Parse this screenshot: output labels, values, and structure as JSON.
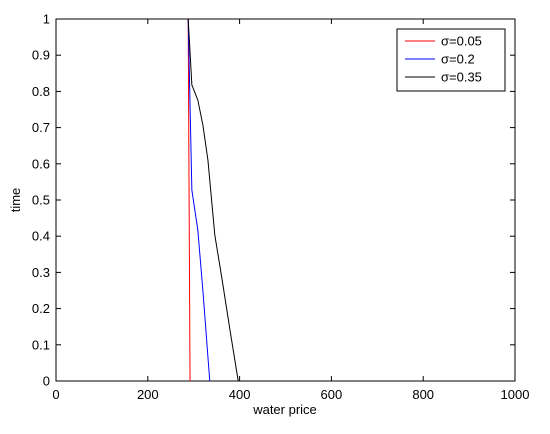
{
  "chart_data": {
    "type": "line",
    "xlabel": "water price",
    "ylabel": "time",
    "xlim": [
      0,
      1000
    ],
    "ylim": [
      0,
      1
    ],
    "xticks": [
      0,
      200,
      400,
      600,
      800,
      1000
    ],
    "yticks": [
      0,
      0.1,
      0.2,
      0.3,
      0.4,
      0.5,
      0.6,
      0.7,
      0.8,
      0.9,
      1
    ],
    "legend": "northeast",
    "series": [
      {
        "name": "σ=0.05",
        "color": "#ff0000",
        "x": [
          288,
          292
        ],
        "values": [
          1,
          0
        ]
      },
      {
        "name": "σ=0.2",
        "color": "#0000ff",
        "x": [
          288,
          296,
          309,
          320,
          335
        ],
        "values": [
          1,
          0.527,
          0.417,
          0.25,
          0
        ]
      },
      {
        "name": "σ=0.35",
        "color": "#000000",
        "x": [
          288,
          296,
          309,
          320,
          331,
          346,
          362,
          379,
          397
        ],
        "values": [
          1,
          0.818,
          0.776,
          0.707,
          0.61,
          0.403,
          0.279,
          0.141,
          0
        ]
      }
    ]
  }
}
